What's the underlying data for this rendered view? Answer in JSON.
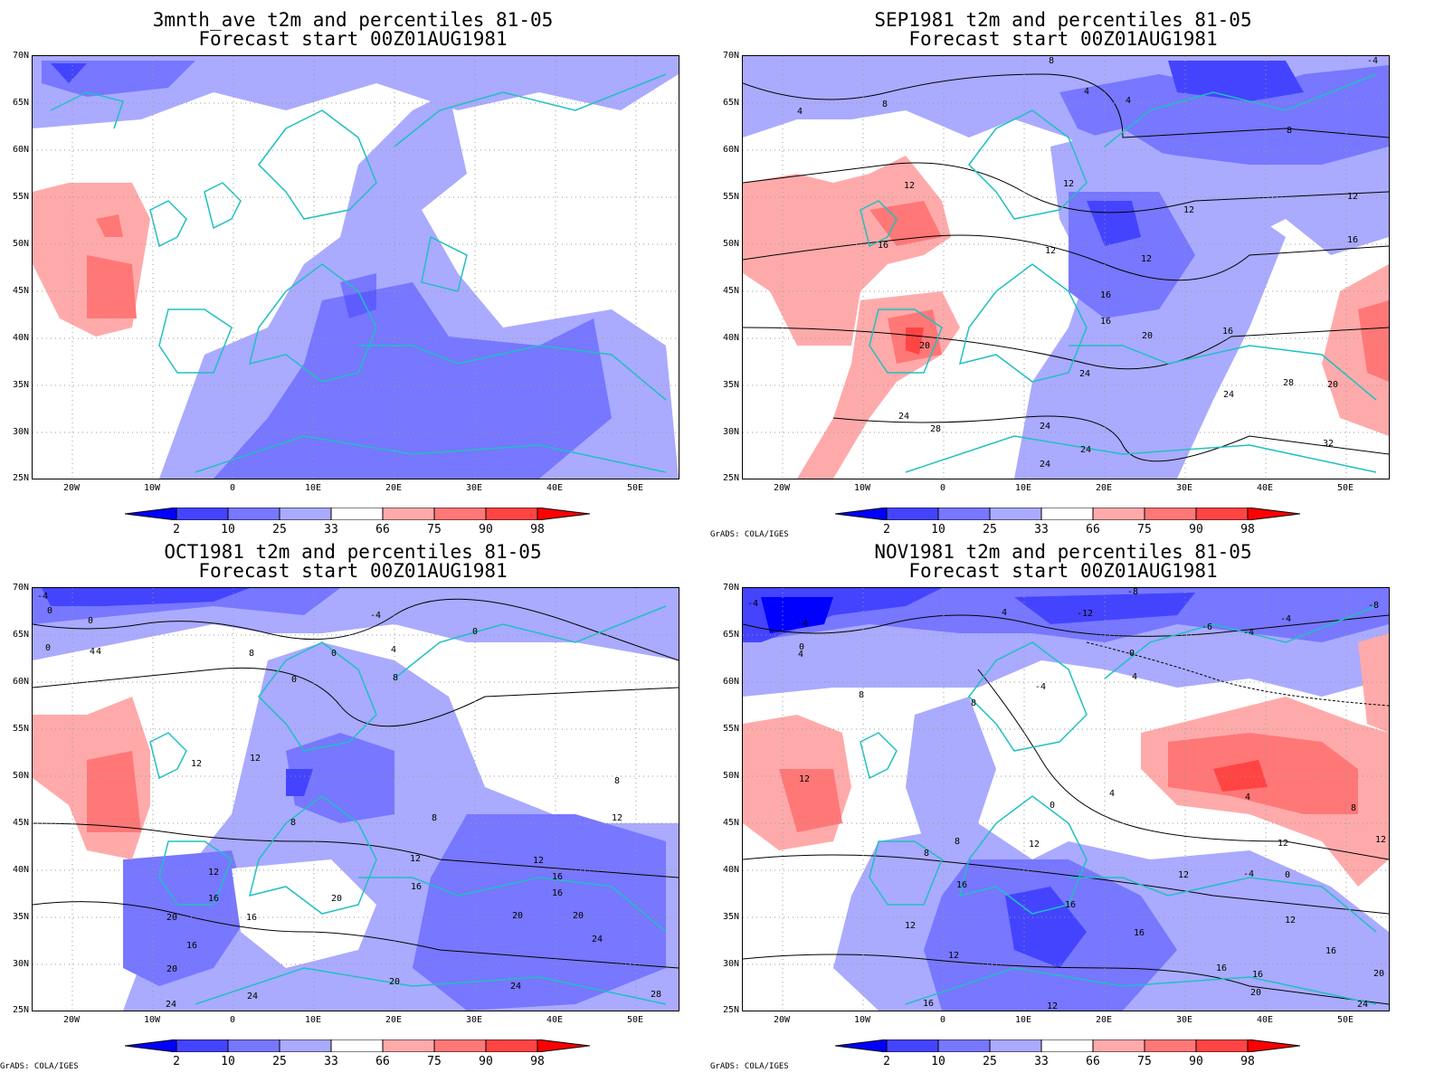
{
  "panels": [
    {
      "id": "p1",
      "title1": "3mnth_ave t2m and percentiles 81-05",
      "title2": "Forecast start 00Z01AUG1981",
      "show_credit": false
    },
    {
      "id": "p2",
      "title1": "SEP1981 t2m and percentiles 81-05",
      "title2": "Forecast start 00Z01AUG1981",
      "show_credit": true
    },
    {
      "id": "p3",
      "title1": "OCT1981 t2m and percentiles 81-05",
      "title2": "Forecast start 00Z01AUG1981",
      "show_credit": true
    },
    {
      "id": "p4",
      "title1": "NOV1981 t2m and percentiles 81-05",
      "title2": "Forecast start 00Z01AUG1981",
      "show_credit": true
    }
  ],
  "credit": "GrADS: COLA/IGES",
  "lat_labels": [
    "70N",
    "65N",
    "60N",
    "55N",
    "50N",
    "45N",
    "40N",
    "35N",
    "30N",
    "25N"
  ],
  "lon_labels": [
    "20W",
    "10W",
    "0",
    "10E",
    "20E",
    "30E",
    "40E",
    "50E"
  ],
  "colorbar": {
    "labels": [
      "2",
      "10",
      "25",
      "33",
      "66",
      "75",
      "90",
      "98"
    ],
    "colors": [
      "#0000ff",
      "#4444ff",
      "#7777ff",
      "#aaaaff",
      "#ffffff",
      "#ffaaaa",
      "#ff7777",
      "#ff4444",
      "#ff0000"
    ]
  },
  "contour_labels": {
    "p2": [
      "8",
      "4",
      "4",
      "8",
      "8",
      "4",
      "-4",
      "12",
      "12",
      "12",
      "16",
      "16",
      "12",
      "12",
      "16",
      "16",
      "20",
      "20",
      "24",
      "24",
      "24",
      "28",
      "24",
      "24",
      "24",
      "20",
      "28",
      "32",
      "16",
      "12"
    ],
    "p3": [
      "-4",
      "0",
      "0",
      "4",
      "-4",
      "0",
      "8",
      "4",
      "0",
      "8",
      "0",
      "12",
      "12",
      "8",
      "8",
      "8",
      "12",
      "12",
      "12",
      "12",
      "16",
      "16",
      "16",
      "16",
      "20",
      "20",
      "20",
      "20",
      "24",
      "24",
      "28",
      "20",
      "24",
      "16",
      "20",
      "16",
      "24",
      "0",
      "4"
    ],
    "p4": [
      "-4",
      "4",
      "0",
      "-4",
      "-12",
      "-8",
      "-8",
      "-4",
      "-4",
      "-6",
      "0",
      "4",
      "4",
      "-4",
      "8",
      "8",
      "12",
      "12",
      "0",
      "4",
      "4",
      "8",
      "12",
      "12",
      "8",
      "8",
      "12",
      "16",
      "16",
      "16",
      "12",
      "16",
      "16",
      "16",
      "20",
      "12",
      "20",
      "24",
      "16",
      "12",
      "12",
      "-4",
      "0"
    ]
  }
}
